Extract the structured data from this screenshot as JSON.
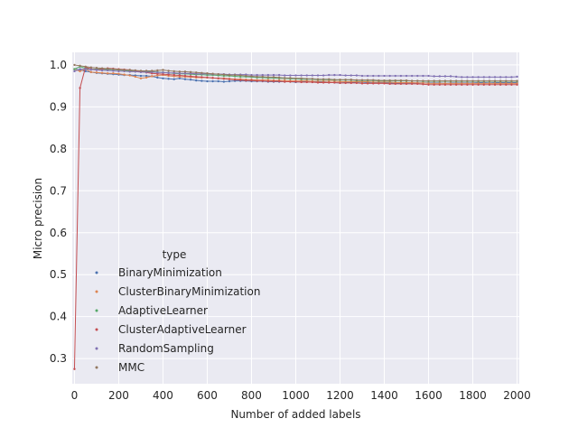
{
  "chart_data": {
    "type": "line",
    "title": "",
    "xlabel": "Number of added labels",
    "ylabel": "Micro precision",
    "xlim": [
      -10,
      2010
    ],
    "ylim": [
      0.24,
      1.03
    ],
    "xticks": [
      0,
      200,
      400,
      600,
      800,
      1000,
      1200,
      1400,
      1600,
      1800,
      2000
    ],
    "yticks": [
      0.3,
      0.4,
      0.5,
      0.6,
      0.7,
      0.8,
      0.9,
      1.0
    ],
    "xtick_labels": [
      "0",
      "200",
      "400",
      "600",
      "800",
      "1000",
      "1200",
      "1400",
      "1600",
      "1800",
      "2000"
    ],
    "ytick_labels": [
      "0.3",
      "0.4",
      "0.5",
      "0.6",
      "0.7",
      "0.8",
      "0.9",
      "1.0"
    ],
    "grid": true,
    "legend": {
      "title": "type",
      "placement": "lower-left"
    },
    "x": [
      0,
      25,
      50,
      75,
      100,
      125,
      150,
      175,
      200,
      225,
      250,
      275,
      300,
      325,
      350,
      375,
      400,
      425,
      450,
      475,
      500,
      525,
      550,
      575,
      600,
      625,
      650,
      675,
      700,
      725,
      750,
      775,
      800,
      825,
      850,
      875,
      900,
      925,
      950,
      975,
      1000,
      1025,
      1050,
      1075,
      1100,
      1125,
      1150,
      1175,
      1200,
      1225,
      1250,
      1275,
      1300,
      1325,
      1350,
      1375,
      1400,
      1425,
      1450,
      1475,
      1500,
      1525,
      1550,
      1575,
      1600,
      1625,
      1650,
      1675,
      1700,
      1725,
      1750,
      1775,
      1800,
      1825,
      1850,
      1875,
      1900,
      1925,
      1950,
      1975,
      2000
    ],
    "series": [
      {
        "name": "BinaryMinimization",
        "color": "#4c72b0",
        "values": [
          0.99,
          0.988,
          0.985,
          0.983,
          0.981,
          0.98,
          0.979,
          0.978,
          0.977,
          0.976,
          0.976,
          0.975,
          0.974,
          0.974,
          0.973,
          0.97,
          0.968,
          0.967,
          0.966,
          0.968,
          0.966,
          0.965,
          0.963,
          0.962,
          0.961,
          0.961,
          0.961,
          0.96,
          0.961,
          0.962,
          0.962,
          0.962,
          0.961,
          0.961,
          0.961,
          0.96,
          0.96,
          0.96,
          0.96,
          0.96,
          0.959,
          0.96,
          0.96,
          0.959,
          0.959,
          0.959,
          0.958,
          0.958,
          0.957,
          0.958,
          0.958,
          0.958,
          0.957,
          0.958,
          0.957,
          0.957,
          0.957,
          0.957,
          0.956,
          0.957,
          0.957,
          0.957,
          0.957,
          0.957,
          0.957,
          0.957,
          0.957,
          0.956,
          0.957,
          0.957,
          0.957,
          0.957,
          0.957,
          0.958,
          0.958,
          0.957,
          0.958,
          0.958,
          0.958,
          0.958,
          0.958
        ]
      },
      {
        "name": "ClusterBinaryMinimization",
        "color": "#dd8452",
        "values": [
          0.99,
          0.985,
          0.99,
          0.983,
          0.982,
          0.981,
          0.98,
          0.98,
          0.979,
          0.977,
          0.975,
          0.972,
          0.968,
          0.97,
          0.973,
          0.975,
          0.976,
          0.974,
          0.973,
          0.972,
          0.972,
          0.971,
          0.97,
          0.97,
          0.97,
          0.969,
          0.968,
          0.968,
          0.967,
          0.966,
          0.966,
          0.965,
          0.965,
          0.964,
          0.964,
          0.964,
          0.963,
          0.963,
          0.963,
          0.962,
          0.962,
          0.962,
          0.962,
          0.961,
          0.961,
          0.961,
          0.961,
          0.961,
          0.96,
          0.96,
          0.96,
          0.96,
          0.96,
          0.96,
          0.959,
          0.959,
          0.959,
          0.959,
          0.958,
          0.958,
          0.958,
          0.958,
          0.957,
          0.957,
          0.956,
          0.956,
          0.956,
          0.956,
          0.956,
          0.956,
          0.956,
          0.956,
          0.956,
          0.956,
          0.956,
          0.956,
          0.956,
          0.956,
          0.956,
          0.956,
          0.956
        ]
      },
      {
        "name": "AdaptiveLearner",
        "color": "#55a868",
        "values": [
          0.99,
          0.996,
          0.992,
          0.99,
          0.99,
          0.99,
          0.989,
          0.989,
          0.988,
          0.987,
          0.986,
          0.986,
          0.985,
          0.984,
          0.984,
          0.983,
          0.982,
          0.981,
          0.98,
          0.979,
          0.979,
          0.978,
          0.977,
          0.977,
          0.976,
          0.976,
          0.975,
          0.974,
          0.974,
          0.973,
          0.972,
          0.972,
          0.971,
          0.97,
          0.97,
          0.969,
          0.969,
          0.968,
          0.968,
          0.967,
          0.967,
          0.966,
          0.966,
          0.966,
          0.965,
          0.965,
          0.965,
          0.964,
          0.964,
          0.964,
          0.964,
          0.963,
          0.963,
          0.963,
          0.963,
          0.962,
          0.962,
          0.962,
          0.962,
          0.962,
          0.962,
          0.962,
          0.962,
          0.961,
          0.961,
          0.961,
          0.961,
          0.961,
          0.961,
          0.961,
          0.961,
          0.961,
          0.961,
          0.961,
          0.961,
          0.961,
          0.961,
          0.961,
          0.961,
          0.961,
          0.961
        ]
      },
      {
        "name": "ClusterAdaptiveLearner",
        "color": "#c44e52",
        "values": [
          0.275,
          0.945,
          0.995,
          0.99,
          0.988,
          0.99,
          0.992,
          0.991,
          0.99,
          0.989,
          0.988,
          0.986,
          0.984,
          0.982,
          0.98,
          0.979,
          0.978,
          0.977,
          0.976,
          0.975,
          0.974,
          0.973,
          0.972,
          0.971,
          0.97,
          0.969,
          0.968,
          0.967,
          0.966,
          0.965,
          0.964,
          0.963,
          0.963,
          0.962,
          0.962,
          0.961,
          0.961,
          0.961,
          0.96,
          0.96,
          0.96,
          0.959,
          0.959,
          0.959,
          0.958,
          0.958,
          0.958,
          0.958,
          0.957,
          0.957,
          0.957,
          0.957,
          0.956,
          0.956,
          0.956,
          0.956,
          0.956,
          0.955,
          0.955,
          0.955,
          0.955,
          0.955,
          0.955,
          0.954,
          0.953,
          0.953,
          0.953,
          0.953,
          0.953,
          0.953,
          0.953,
          0.953,
          0.953,
          0.953,
          0.953,
          0.953,
          0.953,
          0.953,
          0.953,
          0.953,
          0.953
        ]
      },
      {
        "name": "RandomSampling",
        "color": "#8172b3",
        "values": [
          0.985,
          0.99,
          0.99,
          0.989,
          0.988,
          0.987,
          0.987,
          0.986,
          0.985,
          0.985,
          0.984,
          0.984,
          0.983,
          0.983,
          0.983,
          0.982,
          0.982,
          0.981,
          0.981,
          0.98,
          0.98,
          0.98,
          0.979,
          0.979,
          0.979,
          0.978,
          0.978,
          0.978,
          0.977,
          0.977,
          0.977,
          0.977,
          0.976,
          0.976,
          0.976,
          0.976,
          0.976,
          0.976,
          0.975,
          0.975,
          0.975,
          0.975,
          0.975,
          0.975,
          0.975,
          0.975,
          0.976,
          0.976,
          0.976,
          0.975,
          0.975,
          0.975,
          0.974,
          0.974,
          0.974,
          0.974,
          0.974,
          0.974,
          0.974,
          0.974,
          0.974,
          0.974,
          0.974,
          0.974,
          0.974,
          0.973,
          0.973,
          0.973,
          0.973,
          0.972,
          0.971,
          0.971,
          0.971,
          0.971,
          0.971,
          0.971,
          0.971,
          0.971,
          0.971,
          0.971,
          0.972
        ]
      },
      {
        "name": "MMC",
        "color": "#937860",
        "values": [
          1.0,
          0.998,
          0.996,
          0.994,
          0.993,
          0.992,
          0.991,
          0.99,
          0.989,
          0.988,
          0.988,
          0.987,
          0.986,
          0.986,
          0.986,
          0.987,
          0.988,
          0.986,
          0.985,
          0.984,
          0.984,
          0.983,
          0.982,
          0.981,
          0.98,
          0.979,
          0.978,
          0.977,
          0.976,
          0.976,
          0.975,
          0.974,
          0.973,
          0.972,
          0.972,
          0.971,
          0.971,
          0.97,
          0.969,
          0.969,
          0.968,
          0.968,
          0.967,
          0.967,
          0.966,
          0.966,
          0.966,
          0.965,
          0.965,
          0.965,
          0.965,
          0.964,
          0.964,
          0.964,
          0.964,
          0.963,
          0.963,
          0.963,
          0.963,
          0.963,
          0.963,
          0.962,
          0.962,
          0.962,
          0.962,
          0.962,
          0.962,
          0.962,
          0.962,
          0.962,
          0.962,
          0.962,
          0.962,
          0.962,
          0.962,
          0.962,
          0.962,
          0.962,
          0.962,
          0.962,
          0.962
        ]
      }
    ]
  }
}
